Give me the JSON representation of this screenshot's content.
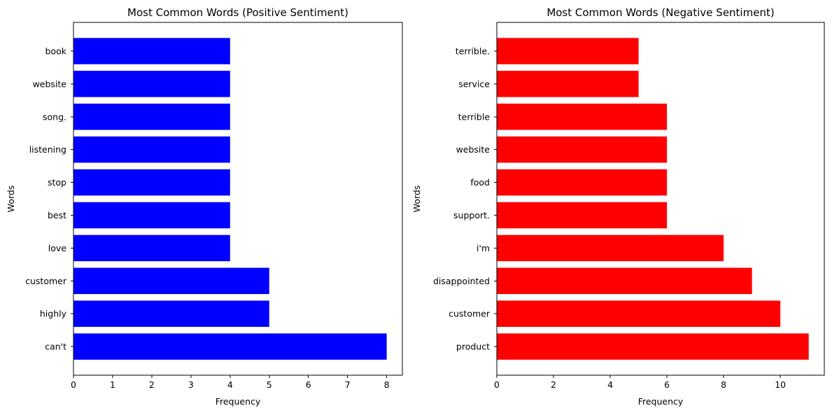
{
  "chart_data": [
    {
      "type": "bar",
      "orientation": "horizontal",
      "title": "Most Common Words (Positive Sentiment)",
      "xlabel": "Frequency",
      "ylabel": "Words",
      "categories": [
        "can't",
        "highly",
        "customer",
        "love",
        "best",
        "stop",
        "listening",
        "song.",
        "website",
        "book"
      ],
      "values": [
        8,
        5,
        5,
        4,
        4,
        4,
        4,
        4,
        4,
        4
      ],
      "color": "#0000ff",
      "xlim": [
        0,
        8.4
      ],
      "xticks": [
        0,
        1,
        2,
        3,
        4,
        5,
        6,
        7,
        8
      ],
      "grid": false,
      "legend": false
    },
    {
      "type": "bar",
      "orientation": "horizontal",
      "title": "Most Common Words (Negative Sentiment)",
      "xlabel": "Frequency",
      "ylabel": "Words",
      "categories": [
        "product",
        "customer",
        "disappointed",
        "i'm",
        "support.",
        "food",
        "website",
        "terrible",
        "service",
        "terrible."
      ],
      "values": [
        11,
        10,
        9,
        8,
        6,
        6,
        6,
        6,
        5,
        5
      ],
      "color": "#ff0000",
      "xlim": [
        0,
        11.55
      ],
      "xticks": [
        0,
        2,
        4,
        6,
        8,
        10
      ],
      "grid": false,
      "legend": false
    }
  ]
}
